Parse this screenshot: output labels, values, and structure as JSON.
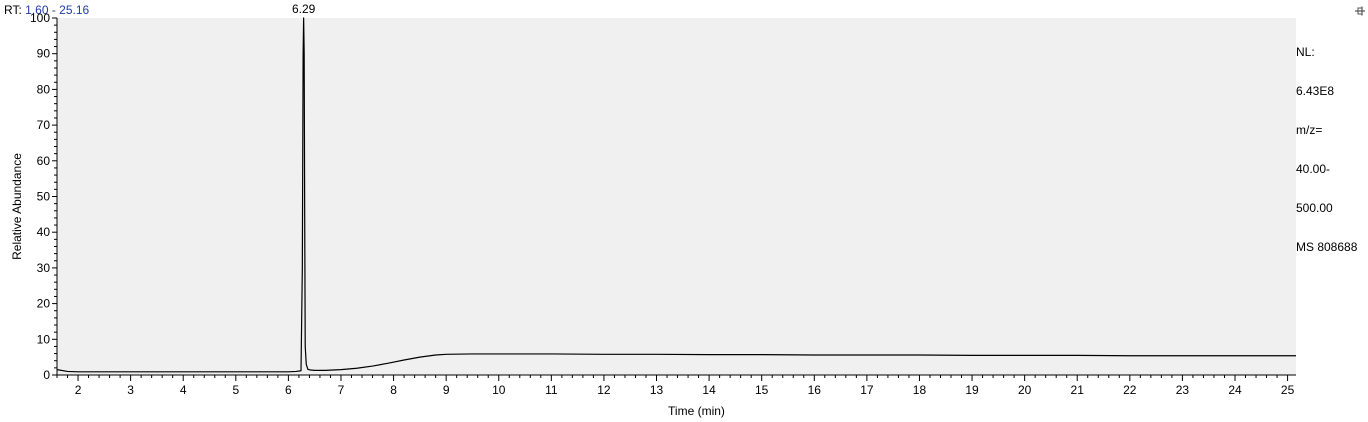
{
  "header": {
    "prefix": "RT:",
    "range": "1.60 - 25.16"
  },
  "side_info": {
    "nl_label": "NL:",
    "nl_value": "6.43E8",
    "mz_label": "m/z=",
    "mz_low": "40.00-",
    "mz_high": "500.00",
    "scan": "MS 808688"
  },
  "icons": {
    "pin": "pin-icon"
  },
  "colors": {
    "plot_background": "#f0f0f0",
    "trace": "#000000",
    "rt_range_text": "#1f3fa8"
  },
  "chart_data": {
    "type": "line",
    "title": "",
    "xlabel": "Time (min)",
    "ylabel": "Relative Abundance",
    "xlim": [
      1.6,
      25.16
    ],
    "ylim": [
      0,
      100
    ],
    "x_ticks": [
      2,
      3,
      4,
      5,
      6,
      7,
      8,
      9,
      10,
      11,
      12,
      13,
      14,
      15,
      16,
      17,
      18,
      19,
      20,
      21,
      22,
      23,
      24,
      25
    ],
    "y_ticks": [
      0,
      10,
      20,
      30,
      40,
      50,
      60,
      70,
      80,
      90,
      100
    ],
    "grid": false,
    "peak_labels": [
      {
        "x": 6.29,
        "y": 100,
        "label": "6.29"
      }
    ],
    "series": [
      {
        "x": [
          1.6,
          1.8,
          2.0,
          3.0,
          4.0,
          5.0,
          6.0,
          6.15,
          6.24,
          6.265,
          6.28,
          6.29,
          6.3,
          6.31,
          6.32,
          6.34,
          6.37,
          6.42,
          6.5,
          6.7,
          7.0,
          7.3,
          7.6,
          7.9,
          8.2,
          8.5,
          8.8,
          9.0,
          9.5,
          10.0,
          11.0,
          12.0,
          13.0,
          14.0,
          15.0,
          16.0,
          17.0,
          18.0,
          19.0,
          20.0,
          21.0,
          22.0,
          23.0,
          24.0,
          25.0,
          25.16
        ],
        "y": [
          1.5,
          1.0,
          0.9,
          0.9,
          0.9,
          0.9,
          0.9,
          1.0,
          1.2,
          30.0,
          90.0,
          100.0,
          90.0,
          45.0,
          8.0,
          3.0,
          1.6,
          1.4,
          1.3,
          1.3,
          1.5,
          1.9,
          2.5,
          3.3,
          4.2,
          5.0,
          5.6,
          5.8,
          5.9,
          5.9,
          5.9,
          5.8,
          5.8,
          5.7,
          5.7,
          5.6,
          5.6,
          5.6,
          5.5,
          5.5,
          5.5,
          5.4,
          5.4,
          5.4,
          5.4,
          5.4
        ]
      }
    ]
  }
}
